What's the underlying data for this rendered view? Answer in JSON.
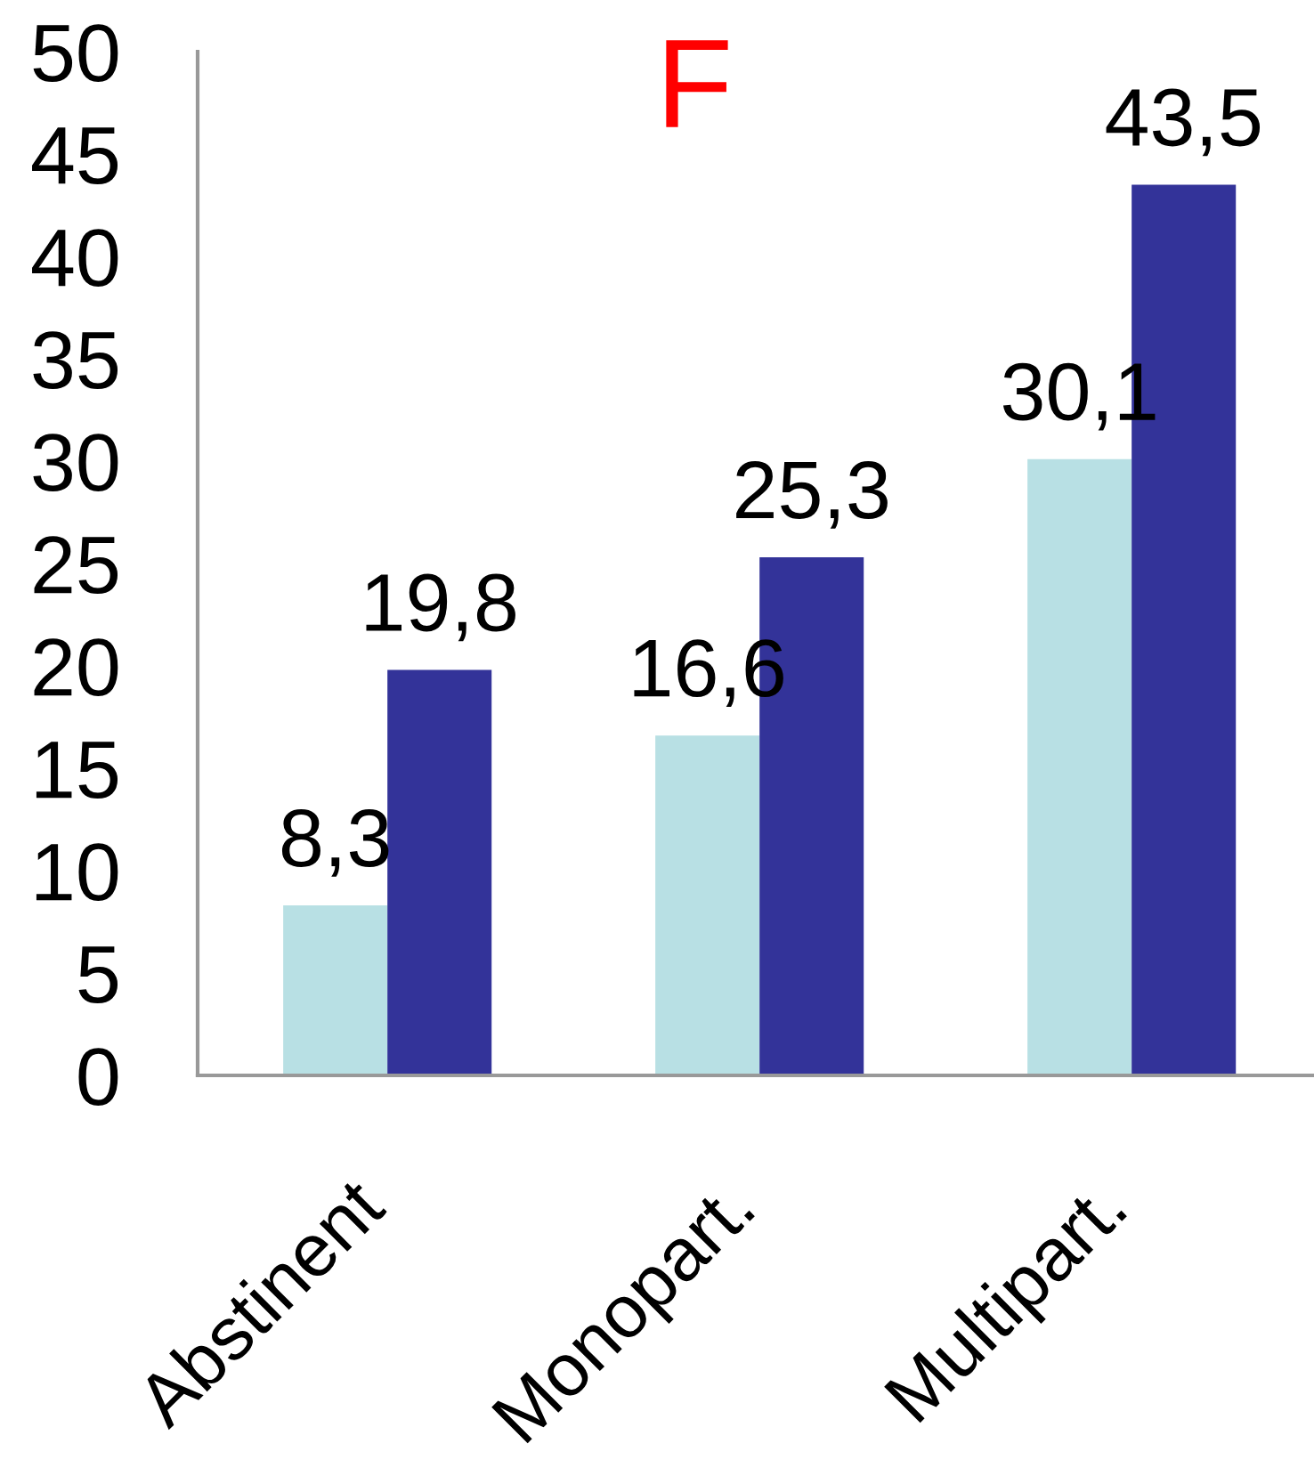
{
  "chart_data": {
    "type": "bar",
    "title": "F",
    "categories": [
      "Abstinent",
      "Monopart.",
      "Multipart."
    ],
    "series": [
      {
        "color": "#b8e0e4",
        "values": [
          8.3,
          16.6,
          30.1
        ],
        "value_labels": [
          "8,3",
          "16,6",
          "30,1"
        ]
      },
      {
        "color": "#333399",
        "values": [
          19.8,
          25.3,
          43.5
        ],
        "value_labels": [
          "19,8",
          "25,3",
          "43,5"
        ]
      }
    ],
    "ylim": [
      0,
      50
    ],
    "yticks": [
      0,
      5,
      10,
      15,
      20,
      25,
      30,
      35,
      40,
      45,
      50
    ]
  }
}
